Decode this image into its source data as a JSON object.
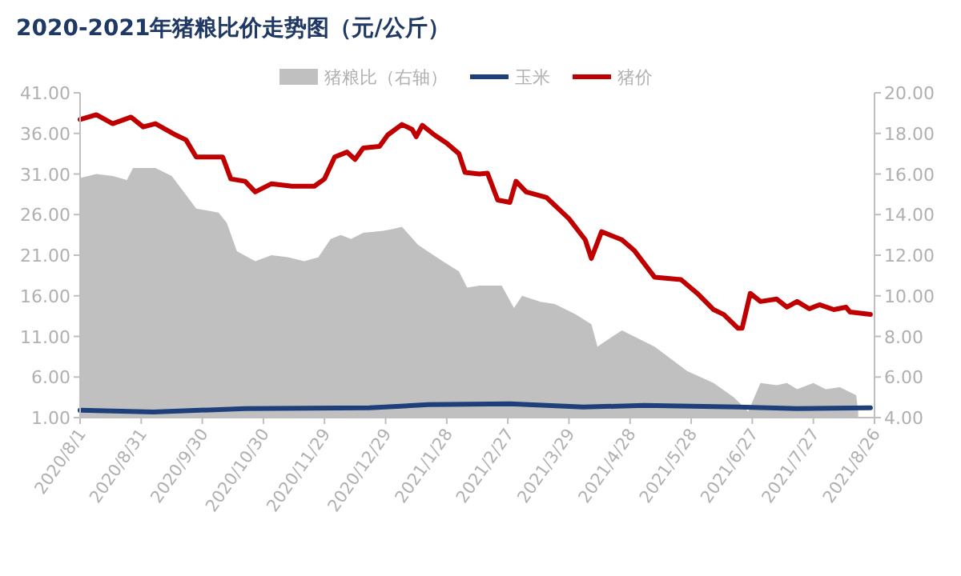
{
  "chart_data": {
    "type": "line",
    "title": "2020-2021年猪粮比价走势图（元/公斤）",
    "xlim": [
      "2020-08-01",
      "2021-08-26"
    ],
    "xticks": [
      {
        "value": "2020-08-01",
        "label": "2020/8/1"
      },
      {
        "value": "2020-08-31",
        "label": "2020/8/31"
      },
      {
        "value": "2020-09-30",
        "label": "2020/9/30"
      },
      {
        "value": "2020-10-30",
        "label": "2020/10/30"
      },
      {
        "value": "2020-11-29",
        "label": "2020/11/29"
      },
      {
        "value": "2020-12-29",
        "label": "2020/12/29"
      },
      {
        "value": "2021-01-28",
        "label": "2021/1/28"
      },
      {
        "value": "2021-02-27",
        "label": "2021/2/27"
      },
      {
        "value": "2021-03-29",
        "label": "2021/3/29"
      },
      {
        "value": "2021-04-28",
        "label": "2021/4/28"
      },
      {
        "value": "2021-05-28",
        "label": "2021/5/28"
      },
      {
        "value": "2021-06-27",
        "label": "2021/6/27"
      },
      {
        "value": "2021-07-27",
        "label": "2021/7/27"
      },
      {
        "value": "2021-08-26",
        "label": "2021/8/26"
      }
    ],
    "ylim": [
      1,
      41
    ],
    "yticks": [
      {
        "value": 1,
        "label": "1.00"
      },
      {
        "value": 6,
        "label": "6.00"
      },
      {
        "value": 11,
        "label": "11.00"
      },
      {
        "value": 16,
        "label": "16.00"
      },
      {
        "value": 21,
        "label": "21.00"
      },
      {
        "value": 26,
        "label": "26.00"
      },
      {
        "value": 31,
        "label": "31.00"
      },
      {
        "value": 36,
        "label": "36.00"
      },
      {
        "value": 41,
        "label": "41.00"
      }
    ],
    "y2lim": [
      4,
      20
    ],
    "y2ticks": [
      {
        "value": 4,
        "label": "4.00"
      },
      {
        "value": 6,
        "label": "6.00"
      },
      {
        "value": 8,
        "label": "8.00"
      },
      {
        "value": 10,
        "label": "10.00"
      },
      {
        "value": 12,
        "label": "12.00"
      },
      {
        "value": 14,
        "label": "14.00"
      },
      {
        "value": 16,
        "label": "16.00"
      },
      {
        "value": 18,
        "label": "18.00"
      },
      {
        "value": 20,
        "label": "20.00"
      }
    ],
    "legend": "top",
    "grid": false,
    "series": [
      {
        "name": "猪粮比（右轴）",
        "type": "area",
        "axis": "y2",
        "color": "#c0c0c0",
        "x": [
          "2020-08-01",
          "2020-08-09",
          "2020-08-17",
          "2020-08-24",
          "2020-08-27",
          "2020-09-07",
          "2020-09-15",
          "2020-09-21",
          "2020-09-27",
          "2020-10-08",
          "2020-10-12",
          "2020-10-17",
          "2020-10-26",
          "2020-11-03",
          "2020-11-11",
          "2020-11-19",
          "2020-11-26",
          "2020-12-02",
          "2020-12-07",
          "2020-12-12",
          "2020-12-18",
          "2020-12-28",
          "2021-01-02",
          "2021-01-06",
          "2021-01-14",
          "2021-01-26",
          "2021-02-03",
          "2021-02-07",
          "2021-02-13",
          "2021-02-21",
          "2021-02-24",
          "2021-03-02",
          "2021-03-06",
          "2021-03-15",
          "2021-03-22",
          "2021-04-01",
          "2021-04-09",
          "2021-04-12",
          "2021-04-24",
          "2021-05-10",
          "2021-05-26",
          "2021-06-08",
          "2021-06-18",
          "2021-06-22",
          "2021-06-25",
          "2021-07-01",
          "2021-07-09",
          "2021-07-14",
          "2021-07-19",
          "2021-07-27",
          "2021-08-02",
          "2021-08-09",
          "2021-08-17",
          "2021-08-18"
        ],
        "values": [
          15.8,
          16.0,
          15.9,
          15.7,
          16.3,
          16.3,
          15.9,
          15.1,
          14.3,
          14.1,
          13.6,
          12.2,
          11.7,
          12.0,
          11.9,
          11.7,
          11.9,
          12.8,
          13.0,
          12.8,
          13.1,
          13.2,
          13.3,
          13.4,
          12.5,
          11.7,
          11.2,
          10.4,
          10.5,
          10.5,
          10.5,
          9.4,
          10.0,
          9.7,
          9.6,
          9.1,
          8.6,
          7.5,
          8.3,
          7.5,
          6.3,
          5.7,
          5.0,
          4.6,
          4.3,
          5.7,
          5.6,
          5.7,
          5.4,
          5.7,
          5.4,
          5.5,
          5.1,
          4.3
        ]
      },
      {
        "name": "玉米",
        "type": "line",
        "color": "#1f3f7a",
        "x": [
          "2020-08-01",
          "2020-09-06",
          "2020-10-21",
          "2020-12-21",
          "2021-01-19",
          "2021-02-28",
          "2021-04-05",
          "2021-05-05",
          "2021-06-20",
          "2021-07-19",
          "2021-08-24"
        ],
        "values": [
          1.9,
          1.7,
          2.1,
          2.2,
          2.6,
          2.7,
          2.3,
          2.5,
          2.3,
          2.1,
          2.2
        ]
      },
      {
        "name": "猪价",
        "type": "line",
        "color": "#c00000",
        "x": [
          "2020-08-01",
          "2020-08-09",
          "2020-08-17",
          "2020-08-26",
          "2020-09-01",
          "2020-09-07",
          "2020-09-17",
          "2020-09-22",
          "2020-09-27",
          "2020-10-10",
          "2020-10-14",
          "2020-10-21",
          "2020-10-26",
          "2020-11-03",
          "2020-11-13",
          "2020-11-24",
          "2020-11-29",
          "2020-12-04",
          "2020-12-10",
          "2020-12-14",
          "2020-12-18",
          "2020-12-26",
          "2020-12-30",
          "2021-01-06",
          "2021-01-11",
          "2021-01-13",
          "2021-01-16",
          "2021-01-22",
          "2021-01-28",
          "2021-02-03",
          "2021-02-06",
          "2021-02-13",
          "2021-02-17",
          "2021-02-22",
          "2021-02-28",
          "2021-03-03",
          "2021-03-08",
          "2021-03-18",
          "2021-03-29",
          "2021-04-06",
          "2021-04-09",
          "2021-04-14",
          "2021-04-24",
          "2021-04-30",
          "2021-05-10",
          "2021-05-23",
          "2021-05-31",
          "2021-06-08",
          "2021-06-13",
          "2021-06-20",
          "2021-06-22",
          "2021-06-26",
          "2021-07-01",
          "2021-07-09",
          "2021-07-14",
          "2021-07-19",
          "2021-07-25",
          "2021-07-30",
          "2021-08-06",
          "2021-08-12",
          "2021-08-14",
          "2021-08-24"
        ],
        "values": [
          37.7,
          38.3,
          37.2,
          38.0,
          36.8,
          37.2,
          35.8,
          35.2,
          33.1,
          33.1,
          30.4,
          30.1,
          28.8,
          29.8,
          29.5,
          29.5,
          30.4,
          33.1,
          33.7,
          32.8,
          34.2,
          34.4,
          35.8,
          37.1,
          36.5,
          35.6,
          37.0,
          35.8,
          34.8,
          33.5,
          31.2,
          31.0,
          31.1,
          27.8,
          27.5,
          30.1,
          28.8,
          28.1,
          25.5,
          22.9,
          20.6,
          23.9,
          22.9,
          21.6,
          18.3,
          18.0,
          16.3,
          14.3,
          13.7,
          12.0,
          12.0,
          16.3,
          15.3,
          15.6,
          14.6,
          15.3,
          14.4,
          14.9,
          14.3,
          14.6,
          14.0,
          13.7
        ]
      }
    ]
  }
}
